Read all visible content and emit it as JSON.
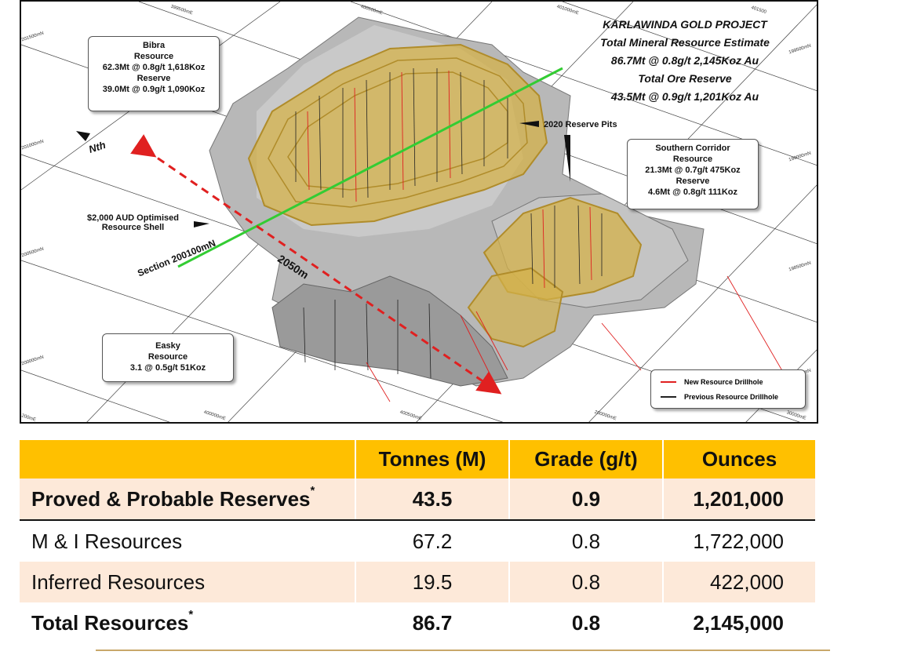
{
  "scene": {
    "title_lines": [
      "KARLAWINDA GOLD PROJECT",
      "Total Mineral Resource Estimate",
      "86.7Mt @ 0.8g/t 2,145Koz Au",
      "Total Ore Reserve",
      "43.5Mt @ 0.9g/t 1,201Koz Au"
    ],
    "bibra": [
      "Bibra",
      "Resource",
      "62.3Mt @ 0.8g/t 1,618Koz",
      "Reserve",
      "39.0Mt @ 0.9g/t 1,090Koz"
    ],
    "southern": [
      "Southern Corridor",
      "Resource",
      "21.3Mt @ 0.7g/t 475Koz",
      "Reserve",
      "4.6Mt @ 0.8g/t 111Koz"
    ],
    "easky": [
      "Easky",
      "Resource",
      "3.1 @ 0.5g/t 51Koz"
    ],
    "reserve_pits": "2020 Reserve Pits",
    "shell": [
      "$2,000 AUD Optimised",
      "Resource Shell"
    ],
    "north": "Nth",
    "section": "Section 200100mN",
    "length": "2050m",
    "legend": {
      "new": "New Resource Drillhole",
      "previous": "Previous Resource Drillhole"
    },
    "grid_labels": [
      "201500mN",
      "201000mN",
      "200500mN",
      "200000mN",
      "200mE",
      "399500mE",
      "400500mE",
      "401000mE",
      "401500",
      "199500mN",
      "199000mN",
      "198500mN",
      "198000mN",
      "400000mE",
      "400500mE",
      "200000mE",
      "30000mE"
    ],
    "colors": {
      "gold": "#d4b24a",
      "green": "#33cc33",
      "red": "#e02020",
      "rock": "#a9a9a9"
    }
  },
  "table": {
    "headers": [
      "",
      "Tonnes (M)",
      "Grade (g/t)",
      "Ounces"
    ],
    "rows": [
      {
        "label": "Proved & Probable Reserves",
        "mark": "*",
        "tonnes": "43.5",
        "grade": "0.9",
        "ounces": "1,201,000"
      },
      {
        "label": "M & I Resources",
        "mark": "",
        "tonnes": "67.2",
        "grade": "0.8",
        "ounces": "1,722,000"
      },
      {
        "label": "Inferred Resources",
        "mark": "",
        "tonnes": "19.5",
        "grade": "0.8",
        "ounces": "422,000"
      },
      {
        "label": "Total Resources",
        "mark": "*",
        "tonnes": "86.7",
        "grade": "0.8",
        "ounces": "2,145,000"
      }
    ]
  }
}
